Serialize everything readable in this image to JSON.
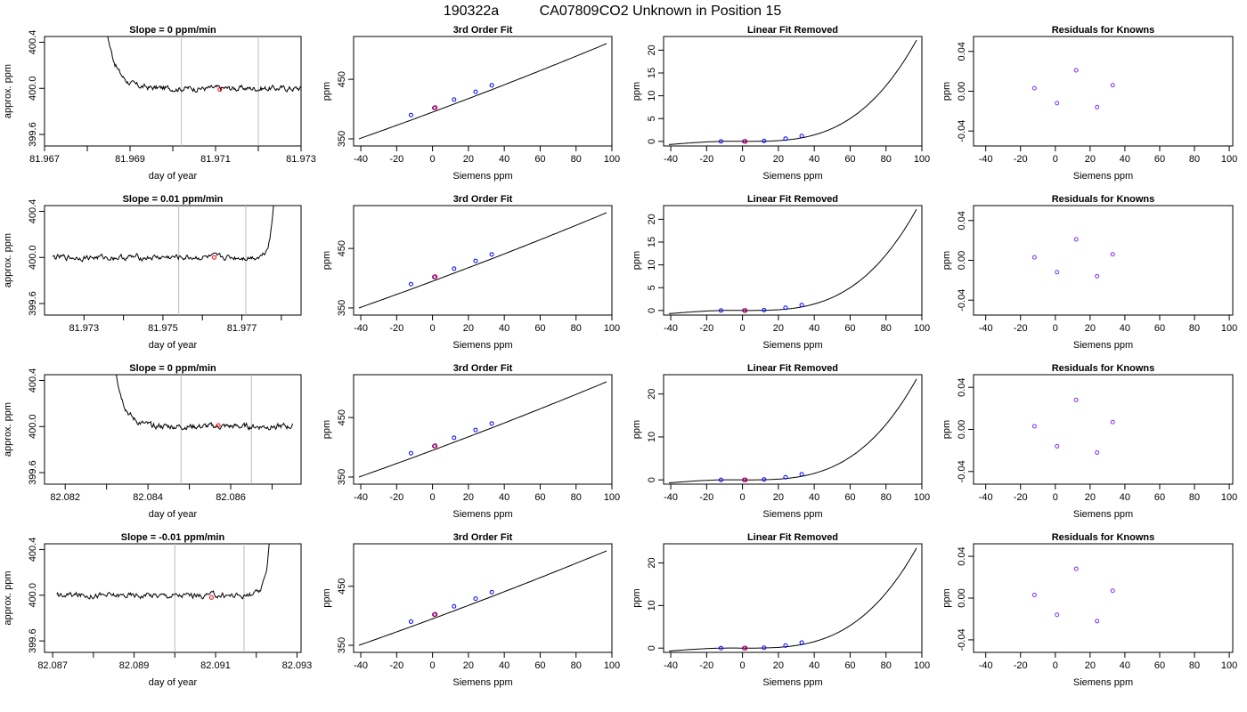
{
  "page": {
    "title_parts": [
      "190322a",
      "CA07809",
      "CO2 Unknown in Position  15"
    ]
  },
  "chart_data": [
    {
      "row": 1,
      "col": 1,
      "type": "line",
      "title": "Slope =  0  ppm/min",
      "xlabel": "day of year",
      "ylabel": "approx. ppm",
      "xlim": [
        81.967,
        81.973
      ],
      "ylim": [
        399.5,
        400.45
      ],
      "xticks": [
        81.967,
        81.969,
        81.971,
        81.973
      ],
      "xtick_labels": [
        "81.967",
        "81.969",
        "81.971",
        "81.973"
      ],
      "xminor": [
        81.968,
        81.97,
        81.972
      ],
      "yticks": [
        399.6,
        400.0,
        400.4
      ],
      "ytick_labels": [
        "399.6",
        "400.0",
        "400.4"
      ],
      "vlines": [
        81.9702,
        81.972
      ],
      "trace": {
        "start": 81.968,
        "end": 81.9731,
        "level": 400.0,
        "spike_side": "left"
      },
      "marker": {
        "x": 81.9711,
        "y": 399.99
      }
    },
    {
      "row": 1,
      "col": 2,
      "type": "scatter",
      "title": "3rd Order Fit",
      "xlabel": "Siemens ppm",
      "ylabel": "ppm",
      "xlim": [
        -44,
        100
      ],
      "ylim": [
        338,
        522
      ],
      "xticks": [
        -40,
        -20,
        0,
        20,
        40,
        60,
        80,
        100
      ],
      "yticks": [
        350,
        450
      ],
      "ytick_labels": [
        "350",
        "450"
      ],
      "curve": {
        "x0": -41,
        "x1": 97,
        "y0": 350,
        "y1": 510
      },
      "points": {
        "x": [
          -12,
          1,
          12,
          24,
          33
        ],
        "y": [
          390,
          402,
          416,
          429,
          440
        ]
      },
      "red_point": {
        "x": 1.5,
        "y": 402.5
      }
    },
    {
      "row": 1,
      "col": 3,
      "type": "scatter",
      "title": "Linear Fit Removed",
      "xlabel": "Siemens ppm",
      "ylabel": "ppm",
      "xlim": [
        -44,
        100
      ],
      "ylim": [
        -1,
        23
      ],
      "xticks": [
        -40,
        -20,
        0,
        20,
        40,
        60,
        80,
        100
      ],
      "yticks": [
        0,
        5,
        10,
        15,
        20
      ],
      "ytick_labels": [
        "0",
        "5",
        "10",
        "15",
        "20"
      ],
      "curve": {
        "x0": -41,
        "x1": 97,
        "peak": 22.2
      },
      "points": {
        "x": [
          -12,
          1,
          12,
          24,
          33
        ],
        "y": [
          0.0,
          0.0,
          0.1,
          0.6,
          1.2
        ]
      },
      "red_point": {
        "x": 1.5,
        "y": 0.0
      }
    },
    {
      "row": 1,
      "col": 4,
      "type": "scatter",
      "title": "Residuals for Knowns",
      "xlabel": "Siemens ppm",
      "ylabel": "ppm",
      "xlim": [
        -47,
        102
      ],
      "ylim": [
        -0.055,
        0.055
      ],
      "xticks": [
        -40,
        -20,
        0,
        20,
        40,
        60,
        80,
        100
      ],
      "yticks": [
        -0.04,
        0.0,
        0.04
      ],
      "ytick_labels": [
        "-0.04",
        "0.00",
        "0.04"
      ],
      "points": {
        "x": [
          -12,
          1,
          12,
          24,
          33
        ],
        "y": [
          0.003,
          -0.012,
          0.021,
          -0.016,
          0.006
        ]
      }
    },
    {
      "row": 2,
      "col": 1,
      "type": "line",
      "title": "Slope =  0.01  ppm/min",
      "xlabel": "day of year",
      "ylabel": "approx. ppm",
      "xlim": [
        81.972,
        81.9785
      ],
      "ylim": [
        399.5,
        400.45
      ],
      "xticks": [
        81.973,
        81.975,
        81.977
      ],
      "xtick_labels": [
        "81.973",
        "81.975",
        "81.977"
      ],
      "xminor": [
        81.974,
        81.976,
        81.978
      ],
      "yticks": [
        399.6,
        400.0,
        400.4
      ],
      "ytick_labels": [
        "399.6",
        "400.0",
        "400.4"
      ],
      "vlines": [
        81.9754,
        81.9771
      ],
      "trace": {
        "start": 81.9722,
        "end": 81.978,
        "level": 400.0,
        "spike_side": "right"
      },
      "marker": {
        "x": 81.9763,
        "y": 400.0
      }
    },
    {
      "row": 2,
      "col": 2,
      "type": "scatter",
      "title": "3rd Order Fit",
      "xlabel": "Siemens ppm",
      "ylabel": "ppm",
      "xlim": [
        -44,
        100
      ],
      "ylim": [
        338,
        522
      ],
      "xticks": [
        -40,
        -20,
        0,
        20,
        40,
        60,
        80,
        100
      ],
      "yticks": [
        350,
        450
      ],
      "ytick_labels": [
        "350",
        "450"
      ],
      "curve": {
        "x0": -41,
        "x1": 97,
        "y0": 350,
        "y1": 510
      },
      "points": {
        "x": [
          -12,
          1,
          12,
          24,
          33
        ],
        "y": [
          390,
          402,
          416,
          429,
          440
        ]
      },
      "red_point": {
        "x": 1.5,
        "y": 402.5
      }
    },
    {
      "row": 2,
      "col": 3,
      "type": "scatter",
      "title": "Linear Fit Removed",
      "xlabel": "Siemens ppm",
      "ylabel": "ppm",
      "xlim": [
        -44,
        100
      ],
      "ylim": [
        -1,
        23
      ],
      "xticks": [
        -40,
        -20,
        0,
        20,
        40,
        60,
        80,
        100
      ],
      "yticks": [
        0,
        5,
        10,
        15,
        20
      ],
      "ytick_labels": [
        "0",
        "5",
        "10",
        "15",
        "20"
      ],
      "curve": {
        "x0": -41,
        "x1": 97,
        "peak": 22.2
      },
      "points": {
        "x": [
          -12,
          1,
          12,
          24,
          33
        ],
        "y": [
          0.0,
          0.0,
          0.1,
          0.6,
          1.2
        ]
      },
      "red_point": {
        "x": 1.5,
        "y": 0.0
      }
    },
    {
      "row": 2,
      "col": 4,
      "type": "scatter",
      "title": "Residuals for Knowns",
      "xlabel": "Siemens ppm",
      "ylabel": "ppm",
      "xlim": [
        -47,
        102
      ],
      "ylim": [
        -0.055,
        0.055
      ],
      "xticks": [
        -40,
        -20,
        0,
        20,
        40,
        60,
        80,
        100
      ],
      "yticks": [
        -0.04,
        0.0,
        0.04
      ],
      "ytick_labels": [
        "-0.04",
        "0.00",
        "0.04"
      ],
      "points": {
        "x": [
          -12,
          1,
          12,
          24,
          33
        ],
        "y": [
          0.003,
          -0.012,
          0.021,
          -0.016,
          0.006
        ]
      }
    },
    {
      "row": 3,
      "col": 1,
      "type": "line",
      "title": "Slope =  0  ppm/min",
      "xlabel": "day of year",
      "ylabel": "approx. ppm",
      "xlim": [
        82.0815,
        82.0877
      ],
      "ylim": [
        399.5,
        400.45
      ],
      "xticks": [
        82.082,
        82.084,
        82.086
      ],
      "xtick_labels": [
        "82.082",
        "82.084",
        "82.086"
      ],
      "xminor": [
        82.083,
        82.085,
        82.087
      ],
      "yticks": [
        399.6,
        400.0,
        400.4
      ],
      "ytick_labels": [
        "399.6",
        "400.0",
        "400.4"
      ],
      "vlines": [
        82.0848,
        82.0865
      ],
      "trace": {
        "start": 82.0828,
        "end": 82.0875,
        "level": 400.0,
        "spike_side": "left"
      },
      "marker": {
        "x": 82.0857,
        "y": 400.01
      }
    },
    {
      "row": 3,
      "col": 2,
      "type": "scatter",
      "title": "3rd Order Fit",
      "xlabel": "Siemens ppm",
      "ylabel": "ppm",
      "xlim": [
        -44,
        100
      ],
      "ylim": [
        338,
        522
      ],
      "xticks": [
        -40,
        -20,
        0,
        20,
        40,
        60,
        80,
        100
      ],
      "yticks": [
        350,
        450
      ],
      "ytick_labels": [
        "350",
        "450"
      ],
      "curve": {
        "x0": -41,
        "x1": 97,
        "y0": 350,
        "y1": 510
      },
      "points": {
        "x": [
          -12,
          1,
          12,
          24,
          33
        ],
        "y": [
          390,
          402,
          416,
          429,
          440
        ]
      },
      "red_point": {
        "x": 1.5,
        "y": 402.5
      }
    },
    {
      "row": 3,
      "col": 3,
      "type": "scatter",
      "title": "Linear Fit Removed",
      "xlabel": "Siemens ppm",
      "ylabel": "ppm",
      "xlim": [
        -44,
        100
      ],
      "ylim": [
        -1,
        24.5
      ],
      "xticks": [
        -40,
        -20,
        0,
        20,
        40,
        60,
        80,
        100
      ],
      "yticks": [
        0,
        10,
        20
      ],
      "ytick_labels": [
        "0",
        "10",
        "20"
      ],
      "curve": {
        "x0": -41,
        "x1": 97,
        "peak": 23.5
      },
      "points": {
        "x": [
          -12,
          1,
          12,
          24,
          33
        ],
        "y": [
          0.0,
          0.0,
          0.1,
          0.6,
          1.3
        ]
      },
      "red_point": {
        "x": 1.5,
        "y": 0.0
      }
    },
    {
      "row": 3,
      "col": 4,
      "type": "scatter",
      "title": "Residuals for Knowns",
      "xlabel": "Siemens ppm",
      "ylabel": "ppm",
      "xlim": [
        -47,
        102
      ],
      "ylim": [
        -0.052,
        0.052
      ],
      "xticks": [
        -40,
        -20,
        0,
        20,
        40,
        60,
        80,
        100
      ],
      "yticks": [
        -0.04,
        0.0,
        0.04
      ],
      "ytick_labels": [
        "-0.04",
        "0.00",
        "0.04"
      ],
      "points": {
        "x": [
          -12,
          1,
          12,
          24,
          33
        ],
        "y": [
          0.003,
          -0.016,
          0.028,
          -0.022,
          0.007
        ]
      }
    },
    {
      "row": 4,
      "col": 1,
      "type": "line",
      "title": "Slope =  -0.01  ppm/min",
      "xlabel": "day of year",
      "ylabel": "approx. ppm",
      "xlim": [
        82.0868,
        82.0931
      ],
      "ylim": [
        399.5,
        400.45
      ],
      "xticks": [
        82.087,
        82.089,
        82.091,
        82.093
      ],
      "xtick_labels": [
        "82.087",
        "82.089",
        "82.091",
        "82.093"
      ],
      "xminor": [
        82.088,
        82.09,
        82.092
      ],
      "yticks": [
        399.6,
        400.0,
        400.4
      ],
      "ytick_labels": [
        "399.6",
        "400.0",
        "400.4"
      ],
      "vlines": [
        82.09,
        82.0917
      ],
      "trace": {
        "start": 82.0871,
        "end": 82.0925,
        "level": 400.0,
        "spike_side": "right"
      },
      "marker": {
        "x": 82.0909,
        "y": 399.98
      }
    },
    {
      "row": 4,
      "col": 2,
      "type": "scatter",
      "title": "3rd Order Fit",
      "xlabel": "Siemens ppm",
      "ylabel": "ppm",
      "xlim": [
        -44,
        100
      ],
      "ylim": [
        338,
        522
      ],
      "xticks": [
        -40,
        -20,
        0,
        20,
        40,
        60,
        80,
        100
      ],
      "yticks": [
        350,
        450
      ],
      "ytick_labels": [
        "350",
        "450"
      ],
      "curve": {
        "x0": -41,
        "x1": 97,
        "y0": 350,
        "y1": 510
      },
      "points": {
        "x": [
          -12,
          1,
          12,
          24,
          33
        ],
        "y": [
          390,
          402,
          416,
          429,
          440
        ]
      },
      "red_point": {
        "x": 1.5,
        "y": 402.5
      }
    },
    {
      "row": 4,
      "col": 3,
      "type": "scatter",
      "title": "Linear Fit Removed",
      "xlabel": "Siemens ppm",
      "ylabel": "ppm",
      "xlim": [
        -44,
        100
      ],
      "ylim": [
        -1,
        24.5
      ],
      "xticks": [
        -40,
        -20,
        0,
        20,
        40,
        60,
        80,
        100
      ],
      "yticks": [
        0,
        10,
        20
      ],
      "ytick_labels": [
        "0",
        "10",
        "20"
      ],
      "curve": {
        "x0": -41,
        "x1": 97,
        "peak": 23.5
      },
      "points": {
        "x": [
          -12,
          1,
          12,
          24,
          33
        ],
        "y": [
          0.0,
          0.0,
          0.1,
          0.6,
          1.3
        ]
      },
      "red_point": {
        "x": 1.5,
        "y": 0.0
      }
    },
    {
      "row": 4,
      "col": 4,
      "type": "scatter",
      "title": "Residuals for Knowns",
      "xlabel": "Siemens ppm",
      "ylabel": "ppm",
      "xlim": [
        -47,
        102
      ],
      "ylim": [
        -0.052,
        0.052
      ],
      "xticks": [
        -40,
        -20,
        0,
        20,
        40,
        60,
        80,
        100
      ],
      "yticks": [
        -0.04,
        0.0,
        0.04
      ],
      "ytick_labels": [
        "-0.04",
        "0.00",
        "0.04"
      ],
      "points": {
        "x": [
          -12,
          1,
          12,
          24,
          33
        ],
        "y": [
          0.003,
          -0.016,
          0.028,
          -0.022,
          0.007
        ]
      }
    }
  ]
}
